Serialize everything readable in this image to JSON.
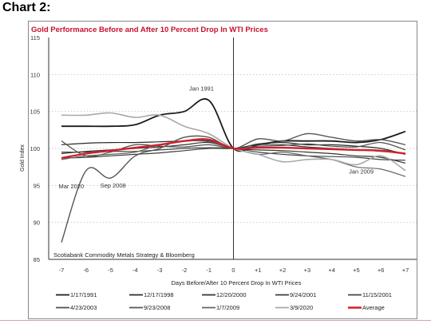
{
  "heading": "Chart 2:",
  "chart_data": {
    "type": "line",
    "title": "Gold Performance Before and After 10 Percent Drop In WTI Prices",
    "xlabel": "Days Before/After 10 Percent Drop In WTI Prices",
    "ylabel": "Gold Index",
    "source": "Scotiabank Commodity Metals Strategy & Bloomberg",
    "x": [
      -7,
      -6,
      -5,
      -4,
      -3,
      -2,
      -1,
      0,
      1,
      2,
      3,
      4,
      5,
      6,
      7
    ],
    "x_tick_labels": [
      "-7",
      "-6",
      "-5",
      "-4",
      "-3",
      "-2",
      "-1",
      "0",
      "+1",
      "+2",
      "+3",
      "+4",
      "+5",
      "+6",
      "+7"
    ],
    "y_ticks": [
      85,
      90,
      95,
      100,
      105,
      110,
      115
    ],
    "ylim": [
      85,
      115
    ],
    "xlim": [
      -7,
      7
    ],
    "grid": "horizontal dotted",
    "legend_position": "bottom",
    "annotations": [
      {
        "text": "Jan 1991",
        "x": -1.3,
        "y": 107.8
      },
      {
        "text": "Mar 2020",
        "x": -6.6,
        "y": 94.6
      },
      {
        "text": "Sep 2008",
        "x": -4.9,
        "y": 94.7
      },
      {
        "text": "Jan 2009",
        "x": 5.2,
        "y": 96.6
      }
    ],
    "series": [
      {
        "name": "1/17/1991",
        "color": "#1a1a1a",
        "width": 1.8,
        "values": [
          103.0,
          103.0,
          103.0,
          103.2,
          104.5,
          105.0,
          106.5,
          100.0,
          100.5,
          101.0,
          101.0,
          101.0,
          100.8,
          101.2,
          102.3
        ]
      },
      {
        "name": "12/17/1998",
        "color": "#2a2a2a",
        "width": 1.2,
        "values": [
          100.5,
          100.7,
          100.8,
          100.8,
          100.9,
          101.0,
          101.0,
          100.0,
          100.6,
          100.8,
          100.5,
          100.5,
          100.3,
          100.0,
          99.2
        ]
      },
      {
        "name": "12/20/2000",
        "color": "#333333",
        "width": 1.2,
        "values": [
          99.3,
          99.6,
          99.8,
          100.0,
          100.2,
          100.5,
          100.8,
          100.0,
          99.8,
          99.7,
          99.5,
          99.3,
          99.0,
          98.8,
          98.0
        ]
      },
      {
        "name": "9/24/2001",
        "color": "#3d3d3d",
        "width": 1.2,
        "values": [
          98.7,
          98.8,
          99.0,
          99.2,
          99.4,
          99.7,
          100.0,
          100.0,
          100.5,
          100.5,
          100.2,
          100.0,
          99.8,
          99.6,
          99.3
        ]
      },
      {
        "name": "11/15/2001",
        "color": "#444444",
        "width": 1.2,
        "values": [
          99.5,
          99.5,
          99.6,
          99.6,
          99.8,
          100.0,
          100.1,
          100.0,
          99.5,
          99.2,
          99.0,
          98.9,
          98.8,
          98.5,
          98.4
        ]
      },
      {
        "name": "4/23/2003",
        "color": "#4d4d4d",
        "width": 1.2,
        "values": [
          101.0,
          99.0,
          99.5,
          100.5,
          100.3,
          100.2,
          100.5,
          100.0,
          100.3,
          100.4,
          100.6,
          100.3,
          100.2,
          100.8,
          99.8
        ]
      },
      {
        "name": "9/23/2008",
        "color": "#555555",
        "width": 1.4,
        "values": [
          87.3,
          97.0,
          96.0,
          99.0,
          100.0,
          101.5,
          101.5,
          100.0,
          101.3,
          101.0,
          102.0,
          101.5,
          101.0,
          101.2,
          100.5
        ]
      },
      {
        "name": "1/7/2009",
        "color": "#666666",
        "width": 1.2,
        "values": [
          98.5,
          99.0,
          99.2,
          99.5,
          100.5,
          101.0,
          100.9,
          100.0,
          99.2,
          99.5,
          99.0,
          98.5,
          97.5,
          97.2,
          96.2
        ]
      },
      {
        "name": "3/9/2020",
        "color": "#a8a8a8",
        "width": 1.6,
        "values": [
          104.5,
          104.5,
          104.8,
          104.2,
          104.5,
          103.0,
          102.0,
          100.0,
          99.2,
          98.2,
          98.5,
          98.5,
          97.8,
          99.0,
          97.0
        ]
      },
      {
        "name": "Average",
        "color": "#d0202c",
        "width": 2.4,
        "values": [
          98.7,
          99.3,
          99.7,
          100.1,
          100.5,
          101.0,
          101.2,
          100.0,
          100.1,
          100.1,
          100.0,
          99.9,
          99.8,
          99.7,
          99.3
        ]
      }
    ]
  }
}
